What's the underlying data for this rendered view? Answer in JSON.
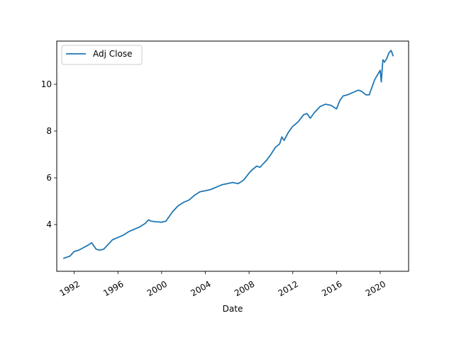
{
  "chart_data": {
    "type": "line",
    "title": "",
    "xlabel": "Date",
    "ylabel": "",
    "legend": {
      "placement": "upper-left",
      "entries": [
        "Adj Close"
      ]
    },
    "grid": false,
    "xlim": [
      1990.4,
      2022.6
    ],
    "ylim": [
      2.0,
      11.85
    ],
    "x_ticks": [
      {
        "value": 1992,
        "label": "1992"
      },
      {
        "value": 1996,
        "label": "1996"
      },
      {
        "value": 2000,
        "label": "2000"
      },
      {
        "value": 2004,
        "label": "2004"
      },
      {
        "value": 2008,
        "label": "2008"
      },
      {
        "value": 2012,
        "label": "2012"
      },
      {
        "value": 2016,
        "label": "2016"
      },
      {
        "value": 2020,
        "label": "2020"
      }
    ],
    "y_ticks": [
      {
        "value": 4,
        "label": "4"
      },
      {
        "value": 6,
        "label": "6"
      },
      {
        "value": 8,
        "label": "8"
      },
      {
        "value": 10,
        "label": "10"
      }
    ],
    "series": [
      {
        "name": "Adj Close",
        "color": "#1f77b4",
        "x": [
          1991.0,
          1991.3,
          1991.6,
          1992.0,
          1992.4,
          1992.8,
          1993.2,
          1993.6,
          1994.0,
          1994.3,
          1994.7,
          1995.0,
          1995.5,
          1996.0,
          1996.5,
          1997.0,
          1997.5,
          1998.0,
          1998.5,
          1998.8,
          1999.0,
          1999.5,
          2000.0,
          2000.4,
          2001.0,
          2001.5,
          2002.0,
          2002.5,
          2003.0,
          2003.5,
          2004.0,
          2004.5,
          2005.0,
          2005.5,
          2006.0,
          2006.5,
          2007.0,
          2007.5,
          2008.0,
          2008.3,
          2008.7,
          2009.0,
          2009.3,
          2009.6,
          2010.0,
          2010.4,
          2010.8,
          2011.0,
          2011.2,
          2011.6,
          2012.0,
          2012.5,
          2013.0,
          2013.3,
          2013.6,
          2014.0,
          2014.5,
          2015.0,
          2015.5,
          2016.0,
          2016.3,
          2016.6,
          2017.0,
          2017.5,
          2018.0,
          2018.3,
          2018.7,
          2019.0,
          2019.5,
          2020.0,
          2020.1,
          2020.2,
          2020.25,
          2020.4,
          2020.6,
          2020.8,
          2021.0,
          2021.2
        ],
        "y": [
          2.55,
          2.6,
          2.65,
          2.85,
          2.9,
          3.0,
          3.1,
          3.22,
          2.95,
          2.9,
          2.95,
          3.1,
          3.35,
          3.45,
          3.55,
          3.7,
          3.8,
          3.9,
          4.05,
          4.2,
          4.15,
          4.12,
          4.1,
          4.15,
          4.55,
          4.8,
          4.95,
          5.05,
          5.25,
          5.4,
          5.45,
          5.5,
          5.6,
          5.7,
          5.75,
          5.8,
          5.75,
          5.9,
          6.2,
          6.35,
          6.5,
          6.45,
          6.6,
          6.75,
          7.0,
          7.3,
          7.45,
          7.75,
          7.6,
          7.95,
          8.2,
          8.4,
          8.7,
          8.75,
          8.55,
          8.8,
          9.05,
          9.15,
          9.1,
          8.95,
          9.3,
          9.5,
          9.55,
          9.65,
          9.75,
          9.7,
          9.55,
          9.55,
          10.2,
          10.6,
          10.1,
          10.75,
          11.05,
          10.95,
          11.1,
          11.35,
          11.45,
          11.2
        ]
      }
    ]
  }
}
